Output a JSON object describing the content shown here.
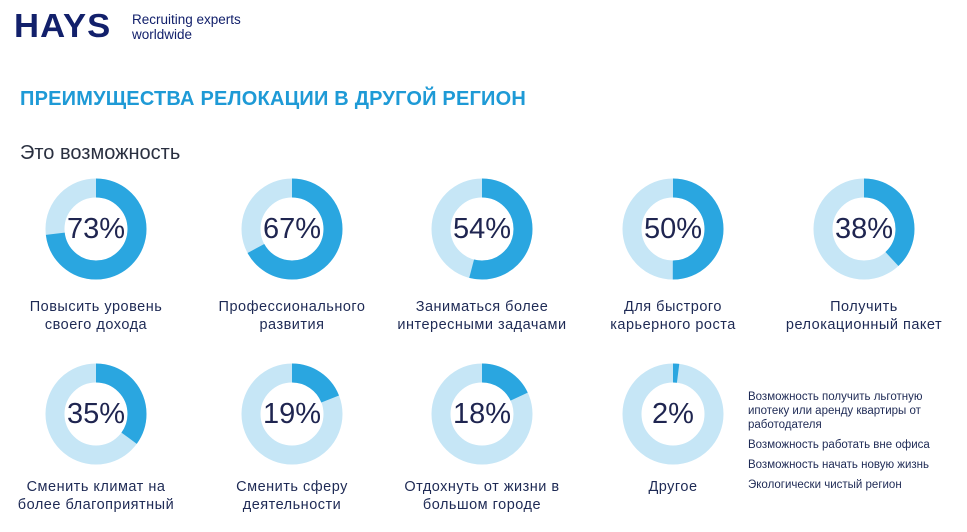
{
  "logo": {
    "wordmark": "HAYS",
    "tagline_line1": "Recruiting experts",
    "tagline_line2": "worldwide"
  },
  "title": "ПРЕИМУЩЕСТВА РЕЛОКАЦИИ В ДРУГОЙ РЕГИОН",
  "subtitle": "Это возможность",
  "colors": {
    "accent": "#2aa6e0",
    "track": "#c6e6f6",
    "title": "#1e9ad6",
    "text": "#1e2a55"
  },
  "chart_data": {
    "type": "donut",
    "items": [
      {
        "value": 73,
        "value_label": "73%",
        "label_line1": "Повысить уровень",
        "label_line2": "своего дохода"
      },
      {
        "value": 67,
        "value_label": "67%",
        "label_line1": "Профессионального",
        "label_line2": "развития"
      },
      {
        "value": 54,
        "value_label": "54%",
        "label_line1": "Заниматься более",
        "label_line2": "интересными задачами"
      },
      {
        "value": 50,
        "value_label": "50%",
        "label_line1": "Для быстрого",
        "label_line2": "карьерного роста"
      },
      {
        "value": 38,
        "value_label": "38%",
        "label_line1": "Получить",
        "label_line2": "релокационный пакет"
      },
      {
        "value": 35,
        "value_label": "35%",
        "label_line1": "Сменить климат на",
        "label_line2": "более благоприятный"
      },
      {
        "value": 19,
        "value_label": "19%",
        "label_line1": "Сменить сферу",
        "label_line2": "деятельности"
      },
      {
        "value": 18,
        "value_label": "18%",
        "label_line1": "Отдохнуть от жизни в",
        "label_line2": "большом городе"
      },
      {
        "value": 2,
        "value_label": "2%",
        "label_line1": "Другое",
        "label_line2": ""
      }
    ],
    "other_breakdown": [
      "Возможность получить льготную ипотеку или аренду квартиры от работодателя",
      "Возможность работать вне офиса",
      "Возможность начать новую жизнь",
      "Экологически чистый регион"
    ]
  }
}
